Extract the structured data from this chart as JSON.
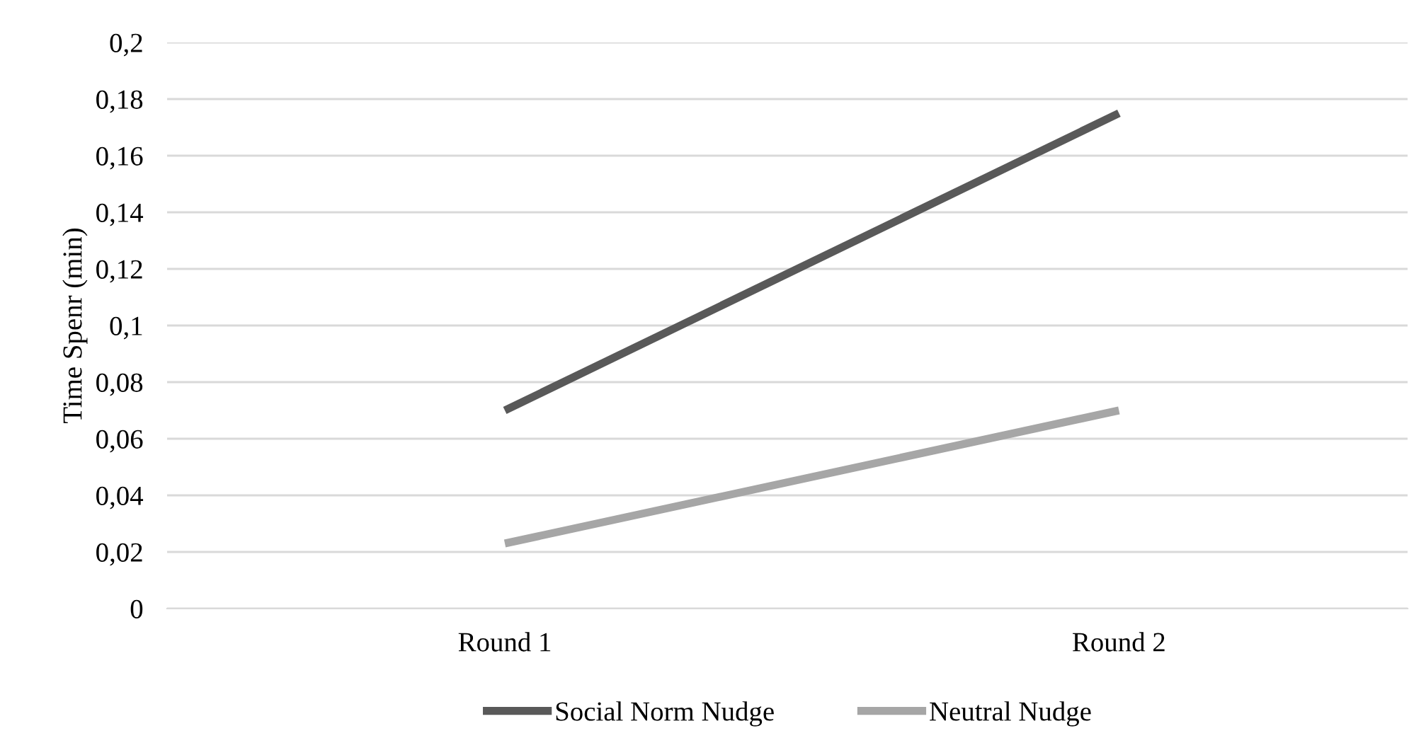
{
  "chart_data": {
    "type": "line",
    "ylabel": "Time Spenr (min)",
    "categories": [
      "Round 1",
      "Round 2"
    ],
    "series": [
      {
        "name": "Social Norm Nudge",
        "color": "#595959",
        "values": [
          0.07,
          0.175
        ]
      },
      {
        "name": "Neutral Nudge",
        "color": "#a6a6a6",
        "values": [
          0.023,
          0.07
        ]
      }
    ],
    "ylim": [
      0,
      0.2
    ],
    "yticks": [
      0,
      {
        "value": 0.02,
        "label": "0,02"
      },
      {
        "value": 0.04,
        "label": "0,04"
      },
      {
        "value": 0.06,
        "label": "0,06"
      },
      {
        "value": 0.08,
        "label": "0,08"
      },
      {
        "value": 0.1,
        "label": "0,1"
      },
      {
        "value": 0.12,
        "label": "0,12"
      },
      {
        "value": 0.14,
        "label": "0,14"
      },
      {
        "value": 0.16,
        "label": "0,16"
      },
      {
        "value": 0.18,
        "label": "0,18"
      },
      {
        "value": 0.2,
        "label": "0,2"
      }
    ],
    "grid": "y",
    "legend": "bottom",
    "marker": "none",
    "line_style": "solid"
  }
}
